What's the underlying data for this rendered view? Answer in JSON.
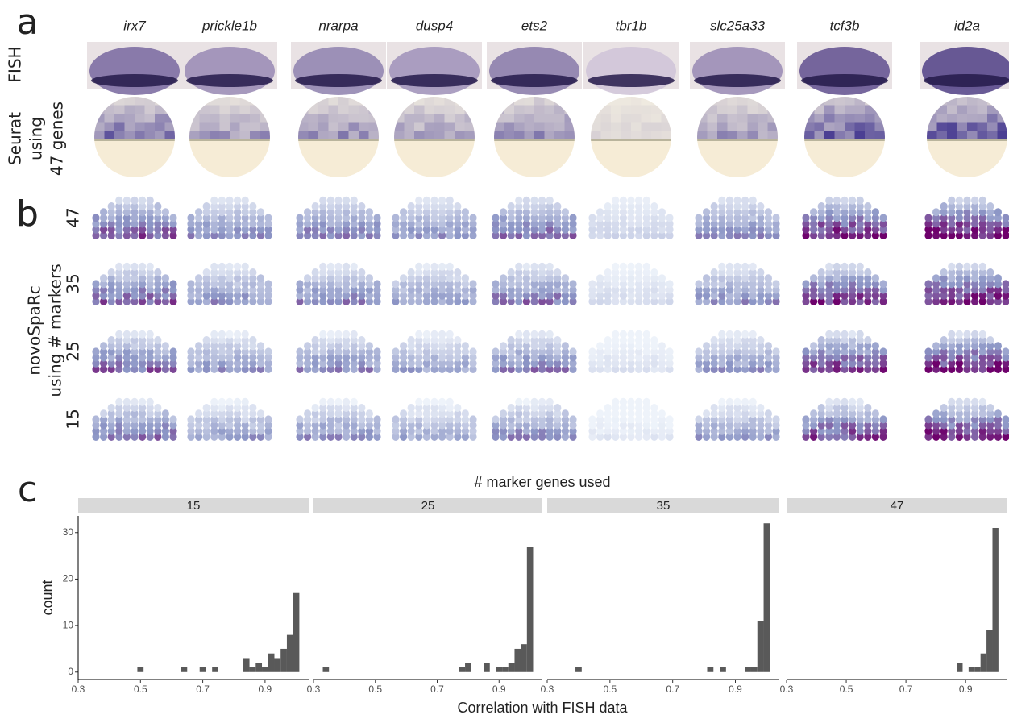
{
  "panel_labels": [
    "a",
    "b",
    "c"
  ],
  "genes": [
    "irx7",
    "prickle1b",
    "nrarpa",
    "dusp4",
    "ets2",
    "tbr1b",
    "slc25a33",
    "tcf3b",
    "id2a"
  ],
  "panel_a": {
    "fish_label": "FISH",
    "seurat_label": [
      "Seurat",
      "using",
      "47 genes"
    ]
  },
  "panel_b": {
    "row_labels": [
      "47",
      "35",
      "25",
      "15"
    ],
    "axis_label": [
      "novoSpaRc",
      "using # markers"
    ]
  },
  "chart_data": {
    "type": "histogram",
    "title": "# marker genes used",
    "x_label": "Correlation with FISH data",
    "y_label": "count",
    "bins": [
      0.29,
      0.31,
      0.33,
      0.35,
      0.37,
      0.39,
      0.41,
      0.43,
      0.45,
      0.47,
      0.49,
      0.51,
      0.53,
      0.55,
      0.57,
      0.59,
      0.61,
      0.63,
      0.65,
      0.67,
      0.69,
      0.71,
      0.73,
      0.75,
      0.77,
      0.79,
      0.81,
      0.83,
      0.85,
      0.87,
      0.89,
      0.91,
      0.93,
      0.95,
      0.97,
      0.99,
      1.01
    ],
    "series": [
      {
        "name": "15",
        "color": "#595959",
        "values": [
          0,
          0,
          0,
          0,
          0,
          0,
          0,
          0,
          0,
          0,
          1,
          0,
          0,
          0,
          0,
          0,
          0,
          1,
          0,
          0,
          1,
          0,
          1,
          0,
          0,
          0,
          0,
          3,
          1,
          2,
          1,
          4,
          3,
          5,
          8,
          17
        ]
      },
      {
        "name": "25",
        "color": "#595959",
        "values": [
          0,
          0,
          1,
          0,
          0,
          0,
          0,
          0,
          0,
          0,
          0,
          0,
          0,
          0,
          0,
          0,
          0,
          0,
          0,
          0,
          0,
          0,
          0,
          0,
          1,
          2,
          0,
          0,
          2,
          0,
          1,
          1,
          2,
          5,
          6,
          27
        ]
      },
      {
        "name": "35",
        "color": "#595959",
        "values": [
          0,
          0,
          0,
          0,
          0,
          1,
          0,
          0,
          0,
          0,
          0,
          0,
          0,
          0,
          0,
          0,
          0,
          0,
          0,
          0,
          0,
          0,
          0,
          0,
          0,
          0,
          1,
          0,
          1,
          0,
          0,
          0,
          1,
          1,
          11,
          32
        ]
      },
      {
        "name": "47",
        "color": "#595959",
        "values": [
          0,
          0,
          0,
          0,
          0,
          0,
          0,
          0,
          0,
          0,
          0,
          0,
          0,
          0,
          0,
          0,
          0,
          0,
          0,
          0,
          0,
          0,
          0,
          0,
          0,
          0,
          0,
          0,
          0,
          2,
          0,
          1,
          1,
          4,
          9,
          31
        ]
      }
    ],
    "xlim": [
      0.3,
      1.04
    ],
    "xticks": [
      0.3,
      0.5,
      0.7,
      0.9
    ],
    "ylim": [
      -1.6,
      33.6
    ],
    "yticks": [
      0,
      10,
      20,
      30
    ]
  }
}
